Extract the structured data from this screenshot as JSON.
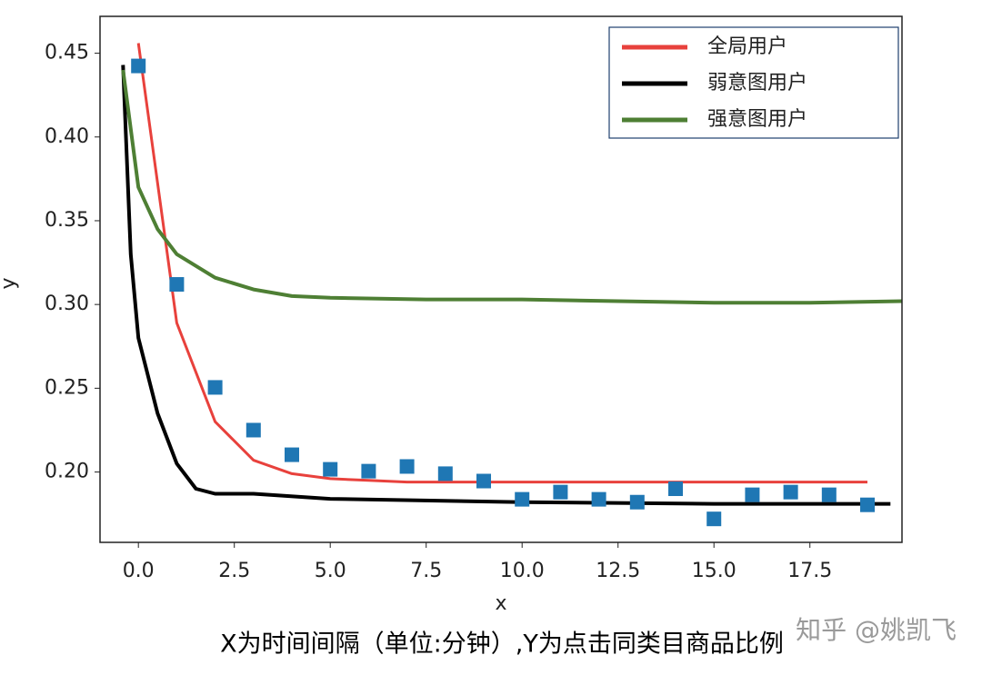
{
  "chart_data": {
    "type": "line",
    "xlabel": "x",
    "ylabel": "y",
    "caption": "X为时间间隔（单位:分钟）,Y为点击同类目商品比例",
    "watermark": "知乎 @姚凯飞",
    "xlim": [
      -1,
      19.9
    ],
    "ylim": [
      0.158,
      0.472
    ],
    "xticks": [
      {
        "value": 0,
        "label": "0.0"
      },
      2.5,
      {
        "value": 5,
        "label": "5.0"
      },
      7.5,
      {
        "value": 10,
        "label": "10.0"
      },
      12.5,
      {
        "value": 15,
        "label": "15.0"
      },
      17.5
    ],
    "yticks": [
      {
        "value": 0.2,
        "label": "0.20"
      },
      0.25,
      {
        "value": 0.3,
        "label": "0.30"
      },
      0.35,
      {
        "value": 0.4,
        "label": "0.40"
      },
      0.45
    ],
    "legend": "upper right",
    "series": [
      {
        "name": "全局用户",
        "color": "#e8413c",
        "style": "line",
        "width": 3,
        "x": [
          0,
          1,
          2,
          3,
          4,
          5,
          6,
          7,
          8,
          9,
          10,
          11,
          12,
          13,
          14,
          15,
          16,
          17,
          18,
          19
        ],
        "values": [
          0.456,
          0.289,
          0.23,
          0.207,
          0.199,
          0.196,
          0.195,
          0.194,
          0.194,
          0.194,
          0.194,
          0.194,
          0.194,
          0.194,
          0.194,
          0.194,
          0.194,
          0.194,
          0.194,
          0.194
        ]
      },
      {
        "name": "弱意图用户",
        "color": "#000000",
        "style": "line",
        "width": 4,
        "x": [
          -0.4,
          -0.2,
          0,
          0.5,
          1,
          1.5,
          2,
          3,
          5,
          10,
          15,
          19.6
        ],
        "values": [
          0.443,
          0.33,
          0.28,
          0.235,
          0.205,
          0.19,
          0.187,
          0.187,
          0.184,
          0.182,
          0.181,
          0.181
        ]
      },
      {
        "name": "强意图用户",
        "color": "#4e7f34",
        "style": "line",
        "width": 4,
        "x": [
          -0.4,
          0,
          0.5,
          1,
          2,
          3,
          4,
          5,
          7.5,
          10,
          12.5,
          15,
          17.5,
          19.9
        ],
        "values": [
          0.44,
          0.37,
          0.345,
          0.33,
          0.316,
          0.309,
          0.305,
          0.304,
          0.303,
          0.303,
          0.302,
          0.301,
          0.301,
          0.302
        ]
      },
      {
        "color": "#1f77b4",
        "style": "scatter",
        "x": [
          0,
          1,
          2,
          3,
          4,
          5,
          6,
          7,
          8,
          9,
          10,
          11,
          12,
          13,
          14,
          15,
          16,
          17,
          18,
          19
        ],
        "values": [
          0.4424,
          0.312,
          0.2505,
          0.225,
          0.2103,
          0.2016,
          0.2005,
          0.2033,
          0.199,
          0.1946,
          0.1837,
          0.188,
          0.1837,
          0.182,
          0.19,
          0.172,
          0.1864,
          0.188,
          0.1864,
          0.1804
        ]
      }
    ]
  }
}
